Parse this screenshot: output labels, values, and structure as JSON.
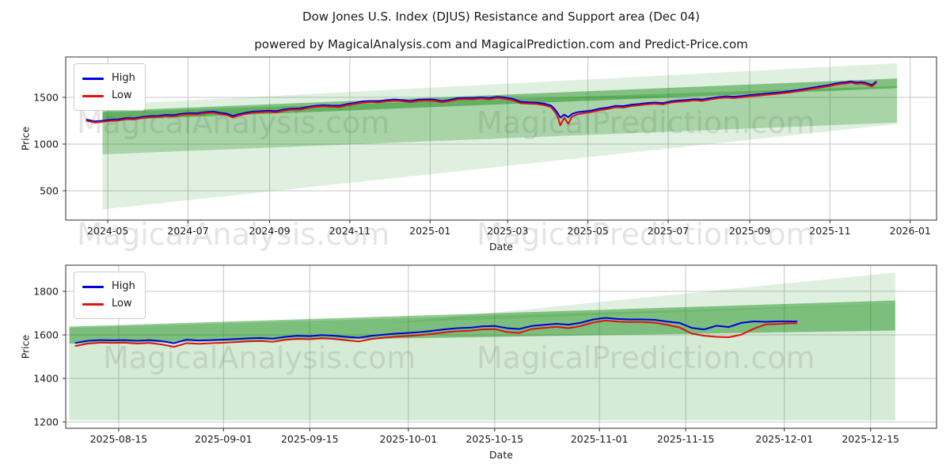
{
  "title": "Dow Jones U.S. Index (DJUS) Resistance and Support area (Dec 04)",
  "subtitle": "powered by MagicalAnalysis.com and MagicalPrediction.com and Predict-Price.com",
  "watermarks": {
    "analysis": "MagicalAnalysis.com",
    "prediction": "MagicalPrediction.com"
  },
  "colors": {
    "high_line": "#0000dd",
    "low_line": "#e01111",
    "band_green": "#008000",
    "grid": "#c6c6c6",
    "spine": "#2f2f2f"
  },
  "chart_data": [
    {
      "type": "line",
      "name": "overview",
      "xlabel": "Date",
      "ylabel": "Price",
      "x_units": "days since 2024-04-01",
      "xlim": [
        -2,
        660
      ],
      "ylim": [
        186,
        1932
      ],
      "grid": true,
      "legend_position": "upper-left",
      "x_ticks": [
        {
          "pos": 30,
          "label": "2024-05"
        },
        {
          "pos": 91,
          "label": "2024-07"
        },
        {
          "pos": 153,
          "label": "2024-09"
        },
        {
          "pos": 214,
          "label": "2024-11"
        },
        {
          "pos": 275,
          "label": "2025-01"
        },
        {
          "pos": 334,
          "label": "2025-03"
        },
        {
          "pos": 395,
          "label": "2025-05"
        },
        {
          "pos": 456,
          "label": "2025-07"
        },
        {
          "pos": 518,
          "label": "2025-09"
        },
        {
          "pos": 579,
          "label": "2025-11"
        },
        {
          "pos": 640,
          "label": "2026-01"
        }
      ],
      "y_ticks": [
        500,
        1000,
        1500
      ],
      "x": [
        14,
        20,
        26,
        32,
        38,
        44,
        50,
        56,
        62,
        68,
        74,
        80,
        86,
        92,
        98,
        104,
        110,
        116,
        121,
        125,
        129,
        134,
        140,
        146,
        152,
        158,
        164,
        170,
        176,
        182,
        188,
        194,
        200,
        206,
        212,
        218,
        224,
        230,
        236,
        242,
        248,
        254,
        260,
        266,
        272,
        278,
        284,
        290,
        296,
        302,
        308,
        314,
        320,
        326,
        332,
        338,
        344,
        350,
        356,
        362,
        367,
        370,
        372,
        374,
        377,
        380,
        383,
        387,
        392,
        398,
        404,
        410,
        416,
        422,
        428,
        434,
        440,
        446,
        452,
        458,
        464,
        470,
        476,
        482,
        488,
        494,
        500,
        506,
        512,
        518,
        524,
        530,
        536,
        542,
        548,
        554,
        560,
        566,
        572,
        578,
        583,
        587,
        591,
        595,
        599,
        603,
        606,
        609,
        611,
        613,
        614
      ],
      "series": [
        {
          "name": "High",
          "color": "#0000dd",
          "values": [
            1262,
            1243,
            1250,
            1260,
            1265,
            1278,
            1276,
            1290,
            1300,
            1302,
            1312,
            1310,
            1324,
            1331,
            1330,
            1342,
            1348,
            1334,
            1324,
            1300,
            1318,
            1333,
            1347,
            1352,
            1357,
            1352,
            1371,
            1380,
            1381,
            1398,
            1410,
            1416,
            1412,
            1410,
            1429,
            1442,
            1457,
            1462,
            1460,
            1471,
            1477,
            1471,
            1461,
            1475,
            1478,
            1477,
            1461,
            1473,
            1491,
            1494,
            1493,
            1500,
            1493,
            1506,
            1499,
            1484,
            1452,
            1447,
            1444,
            1432,
            1412,
            1370,
            1331,
            1283,
            1315,
            1288,
            1323,
            1341,
            1349,
            1360,
            1379,
            1391,
            1409,
            1407,
            1421,
            1429,
            1439,
            1445,
            1439,
            1457,
            1467,
            1472,
            1481,
            1477,
            1491,
            1503,
            1511,
            1507,
            1515,
            1524,
            1531,
            1539,
            1547,
            1555,
            1565,
            1577,
            1591,
            1605,
            1619,
            1631,
            1647,
            1657,
            1661,
            1671,
            1659,
            1663,
            1656,
            1641,
            1633,
            1655,
            1667
          ]
        },
        {
          "name": "Low",
          "color": "#e01111",
          "values": [
            1248,
            1230,
            1238,
            1248,
            1252,
            1266,
            1263,
            1278,
            1288,
            1290,
            1300,
            1296,
            1312,
            1319,
            1317,
            1330,
            1336,
            1320,
            1308,
            1284,
            1304,
            1320,
            1335,
            1340,
            1345,
            1338,
            1358,
            1368,
            1368,
            1386,
            1398,
            1404,
            1399,
            1396,
            1416,
            1429,
            1444,
            1450,
            1446,
            1458,
            1465,
            1458,
            1448,
            1462,
            1466,
            1464,
            1447,
            1460,
            1478,
            1481,
            1480,
            1488,
            1479,
            1493,
            1485,
            1469,
            1436,
            1432,
            1429,
            1416,
            1394,
            1342,
            1292,
            1200,
            1282,
            1215,
            1296,
            1318,
            1330,
            1344,
            1363,
            1376,
            1394,
            1391,
            1406,
            1415,
            1425,
            1431,
            1424,
            1443,
            1453,
            1458,
            1468,
            1462,
            1477,
            1490,
            1498,
            1492,
            1501,
            1511,
            1518,
            1526,
            1534,
            1542,
            1552,
            1564,
            1578,
            1592,
            1606,
            1619,
            1634,
            1644,
            1648,
            1658,
            1645,
            1649,
            1641,
            1626,
            1617,
            1641,
            1654
          ]
        }
      ],
      "bands": [
        {
          "name": "outer-fan",
          "opacity": 0.12,
          "points": [
            [
              26,
              1420
            ],
            [
              630,
              1865
            ],
            [
              630,
              1215
            ],
            [
              26,
              300
            ]
          ]
        },
        {
          "name": "support-area",
          "opacity": 0.25,
          "points": [
            [
              26,
              1340
            ],
            [
              630,
              1620
            ],
            [
              630,
              1230
            ],
            [
              26,
              890
            ]
          ]
        },
        {
          "name": "resistance-channel",
          "opacity": 0.42,
          "points": [
            [
              26,
              1352
            ],
            [
              630,
              1702
            ],
            [
              630,
              1598
            ],
            [
              26,
              1252
            ]
          ]
        }
      ]
    },
    {
      "type": "line",
      "name": "recent-detail",
      "xlabel": "Date",
      "ylabel": "Price",
      "x_units": "days since 2025-08-01",
      "xlim": [
        5.4,
        146.7
      ],
      "ylim": [
        1171,
        1920
      ],
      "grid": true,
      "legend_position": "upper-left",
      "x_ticks": [
        {
          "pos": 14,
          "label": "2025-08-15"
        },
        {
          "pos": 31,
          "label": "2025-09-01"
        },
        {
          "pos": 45,
          "label": "2025-09-15"
        },
        {
          "pos": 61,
          "label": "2025-10-01"
        },
        {
          "pos": 75,
          "label": "2025-10-15"
        },
        {
          "pos": 92,
          "label": "2025-11-01"
        },
        {
          "pos": 106,
          "label": "2025-11-15"
        },
        {
          "pos": 122,
          "label": "2025-12-01"
        },
        {
          "pos": 136,
          "label": "2025-12-15"
        }
      ],
      "y_ticks": [
        1200,
        1400,
        1600,
        1800
      ],
      "x": [
        7,
        9,
        11,
        13,
        15,
        17,
        19,
        21,
        23,
        25,
        27,
        29,
        31,
        33,
        35,
        37,
        39,
        41,
        43,
        45,
        47,
        49,
        51,
        53,
        55,
        57,
        59,
        61,
        63,
        65,
        67,
        69,
        71,
        73,
        75,
        77,
        79,
        81,
        83,
        85,
        87,
        89,
        91,
        93,
        95,
        97,
        99,
        101,
        103,
        105,
        107,
        109,
        111,
        113,
        115,
        117,
        119,
        121,
        123,
        124
      ],
      "series": [
        {
          "name": "High",
          "color": "#0000dd",
          "values": [
            1563,
            1573,
            1576,
            1575,
            1576,
            1573,
            1576,
            1571,
            1562,
            1578,
            1574,
            1576,
            1578,
            1581,
            1584,
            1586,
            1583,
            1591,
            1596,
            1594,
            1599,
            1596,
            1591,
            1587,
            1596,
            1601,
            1606,
            1609,
            1613,
            1619,
            1626,
            1631,
            1633,
            1639,
            1641,
            1631,
            1627,
            1641,
            1646,
            1651,
            1647,
            1656,
            1671,
            1678,
            1673,
            1671,
            1671,
            1669,
            1661,
            1655,
            1632,
            1625,
            1642,
            1636,
            1655,
            1662,
            1660,
            1662,
            1662,
            1662
          ]
        },
        {
          "name": "Low",
          "color": "#e01111",
          "values": [
            1549,
            1560,
            1564,
            1563,
            1564,
            1560,
            1563,
            1556,
            1545,
            1562,
            1559,
            1562,
            1564,
            1567,
            1570,
            1572,
            1568,
            1577,
            1582,
            1580,
            1585,
            1581,
            1575,
            1570,
            1581,
            1587,
            1592,
            1595,
            1599,
            1605,
            1612,
            1617,
            1619,
            1625,
            1627,
            1613,
            1609,
            1627,
            1632,
            1637,
            1631,
            1641,
            1657,
            1666,
            1661,
            1659,
            1659,
            1656,
            1646,
            1634,
            1606,
            1596,
            1591,
            1589,
            1601,
            1628,
            1648,
            1650,
            1653,
            1653
          ]
        }
      ],
      "bands": [
        {
          "name": "outer-fan",
          "opacity": 0.16,
          "points": [
            [
              6,
              1632
            ],
            [
              140,
              1742
            ],
            [
              140,
              1208
            ],
            [
              6,
              1208
            ]
          ]
        },
        {
          "name": "upper-wedge",
          "opacity": 0.12,
          "points": [
            [
              58,
              1655
            ],
            [
              140,
              1886
            ],
            [
              140,
              1742
            ]
          ]
        },
        {
          "name": "resistance-channel",
          "opacity": 0.42,
          "points": [
            [
              6,
              1638
            ],
            [
              140,
              1758
            ],
            [
              140,
              1620
            ],
            [
              6,
              1560
            ]
          ]
        }
      ]
    }
  ]
}
